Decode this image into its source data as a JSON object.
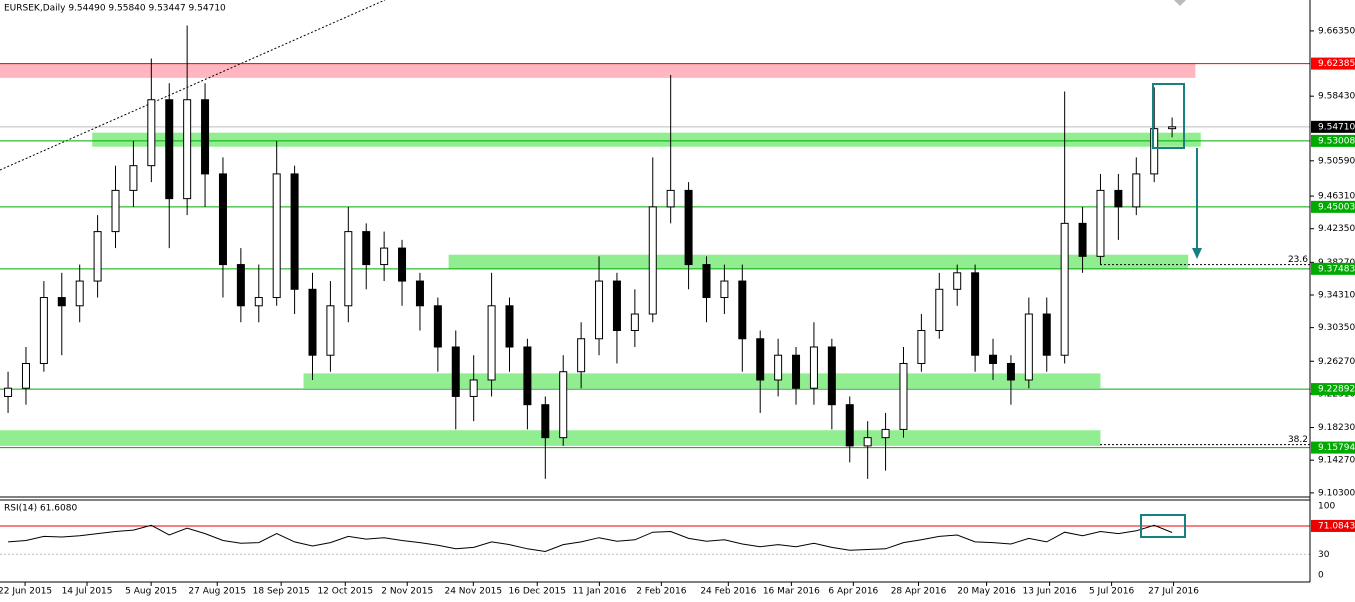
{
  "chart_data": {
    "type": "candlestick",
    "title": "EURSEK,Daily  9.54490 9.55840 9.53447 9.54710",
    "ylim": [
      9.098,
      9.701
    ],
    "yticks": [
      {
        "value": 9.6635,
        "label": "9.66350"
      },
      {
        "value": 9.5843,
        "label": "9.58430"
      },
      {
        "value": 9.5059,
        "label": "9.50590"
      },
      {
        "value": 9.4631,
        "label": "9.46310"
      },
      {
        "value": 9.4235,
        "label": "9.42350"
      },
      {
        "value": 9.3827,
        "label": "9.38270"
      },
      {
        "value": 9.3431,
        "label": "9.34310"
      },
      {
        "value": 9.3035,
        "label": "9.30350"
      },
      {
        "value": 9.2627,
        "label": "9.26270"
      },
      {
        "value": 9.2231,
        "label": "9.22310"
      },
      {
        "value": 9.1823,
        "label": "9.18230"
      },
      {
        "value": 9.1427,
        "label": "9.14270"
      },
      {
        "value": 9.103,
        "label": "9.10300"
      }
    ],
    "xlim": [
      -0.45,
      72.7
    ],
    "xticks": [
      {
        "value": 0.95,
        "label": "22 Jun 2015"
      },
      {
        "value": 4.41,
        "label": "14 Jul 2015"
      },
      {
        "value": 7.99,
        "label": "5 Aug 2015"
      },
      {
        "value": 11.68,
        "label": "27 Aug 2015"
      },
      {
        "value": 15.25,
        "label": "18 Sep 2015"
      },
      {
        "value": 18.83,
        "label": "12 Oct 2015"
      },
      {
        "value": 22.29,
        "label": "2 Nov 2015"
      },
      {
        "value": 25.98,
        "label": "24 Nov 2015"
      },
      {
        "value": 29.55,
        "label": "16 Dec 2015"
      },
      {
        "value": 33.02,
        "label": "11 Jan 2016"
      },
      {
        "value": 36.48,
        "label": "2 Feb 2016"
      },
      {
        "value": 40.22,
        "label": "24 Feb 2016"
      },
      {
        "value": 43.74,
        "label": "16 Mar 2016"
      },
      {
        "value": 47.2,
        "label": "6 Apr 2016"
      },
      {
        "value": 50.84,
        "label": "28 Apr 2016"
      },
      {
        "value": 54.64,
        "label": "20 May 2016"
      },
      {
        "value": 58.16,
        "label": "13 Jun 2016"
      },
      {
        "value": 61.62,
        "label": "5 Jul 2016"
      },
      {
        "value": 65.08,
        "label": "27 Jul 2016"
      }
    ],
    "ohlc": {
      "open": [
        9.22,
        9.23,
        9.26,
        9.34,
        9.33,
        9.36,
        9.42,
        9.47,
        9.5,
        9.58,
        9.46,
        9.58,
        9.49,
        9.38,
        9.33,
        9.34,
        9.49,
        9.35,
        9.27,
        9.33,
        9.42,
        9.38,
        9.4,
        9.36,
        9.33,
        9.28,
        9.22,
        9.24,
        9.33,
        9.28,
        9.21,
        9.17,
        9.25,
        9.29,
        9.36,
        9.3,
        9.32,
        9.45,
        9.47,
        9.38,
        9.34,
        9.36,
        9.29,
        9.24,
        9.27,
        9.23,
        9.28,
        9.21,
        9.16,
        9.17,
        9.18,
        9.26,
        9.3,
        9.35,
        9.37,
        9.27,
        9.26,
        9.24,
        9.32,
        9.27,
        9.43,
        9.39,
        9.47,
        9.45,
        9.49,
        9.5449
      ],
      "high": [
        9.25,
        9.28,
        9.36,
        9.37,
        9.38,
        9.44,
        9.5,
        9.53,
        9.63,
        9.6,
        9.67,
        9.6,
        9.51,
        9.4,
        9.38,
        9.53,
        9.5,
        9.37,
        9.36,
        9.45,
        9.43,
        9.42,
        9.41,
        9.37,
        9.34,
        9.3,
        9.27,
        9.37,
        9.34,
        9.29,
        9.22,
        9.27,
        9.31,
        9.39,
        9.37,
        9.35,
        9.51,
        9.61,
        9.48,
        9.39,
        9.38,
        9.38,
        9.3,
        9.29,
        9.28,
        9.31,
        9.29,
        9.22,
        9.19,
        9.2,
        9.28,
        9.32,
        9.37,
        9.38,
        9.38,
        9.29,
        9.27,
        9.34,
        9.34,
        9.59,
        9.45,
        9.49,
        9.49,
        9.51,
        9.595,
        9.5584
      ],
      "low": [
        9.2,
        9.21,
        9.25,
        9.27,
        9.31,
        9.34,
        9.4,
        9.45,
        9.48,
        9.4,
        9.44,
        9.45,
        9.34,
        9.31,
        9.31,
        9.33,
        9.32,
        9.24,
        9.25,
        9.31,
        9.35,
        9.36,
        9.33,
        9.3,
        9.25,
        9.18,
        9.19,
        9.22,
        9.25,
        9.18,
        9.12,
        9.16,
        9.23,
        9.27,
        9.26,
        9.28,
        9.31,
        9.43,
        9.35,
        9.31,
        9.32,
        9.25,
        9.2,
        9.22,
        9.21,
        9.21,
        9.18,
        9.14,
        9.12,
        9.13,
        9.17,
        9.25,
        9.29,
        9.33,
        9.25,
        9.24,
        9.21,
        9.23,
        9.25,
        9.26,
        9.37,
        9.38,
        9.41,
        9.44,
        9.48,
        9.53447
      ],
      "close": [
        9.23,
        9.26,
        9.34,
        9.33,
        9.36,
        9.42,
        9.47,
        9.5,
        9.58,
        9.46,
        9.58,
        9.49,
        9.38,
        9.33,
        9.34,
        9.49,
        9.35,
        9.27,
        9.33,
        9.42,
        9.38,
        9.4,
        9.36,
        9.33,
        9.28,
        9.22,
        9.24,
        9.33,
        9.28,
        9.21,
        9.17,
        9.25,
        9.29,
        9.36,
        9.3,
        9.32,
        9.45,
        9.47,
        9.38,
        9.34,
        9.36,
        9.29,
        9.24,
        9.27,
        9.23,
        9.28,
        9.21,
        9.16,
        9.17,
        9.18,
        9.26,
        9.3,
        9.35,
        9.37,
        9.27,
        9.26,
        9.24,
        9.32,
        9.27,
        9.43,
        9.39,
        9.47,
        9.45,
        9.49,
        9.5449,
        9.5471
      ]
    },
    "zones": [
      {
        "from": -0.45,
        "to": 66.3,
        "low": 9.6065,
        "high": 9.6245,
        "color": "#ffb6c1"
      },
      {
        "from": 4.7,
        "to": 66.6,
        "low": 9.523,
        "high": 9.54,
        "color": "#90ee90"
      },
      {
        "from": 24.6,
        "to": 65.9,
        "low": 9.375,
        "high": 9.392,
        "color": "#90ee90"
      },
      {
        "from": 16.5,
        "to": 61,
        "low": 9.23,
        "high": 9.248,
        "color": "#90ee90"
      },
      {
        "from": -0.45,
        "to": 61,
        "low": 9.16,
        "high": 9.179,
        "color": "#90ee90"
      }
    ],
    "levels": [
      {
        "value": 9.62385,
        "color": "#ff0000"
      },
      {
        "value": {
          "value": 9.5471,
          "label": "9.54710"
        },
        "color": "#000000"
      },
      {
        "value": 9.53008,
        "color": "#00aa00"
      },
      {
        "value": 9.45003,
        "color": "#00aa00"
      },
      {
        "value": 9.37483,
        "color": "#00aa00"
      },
      {
        "value": 9.22892,
        "color": "#00aa00"
      },
      {
        "value": 9.15794,
        "color": "#00aa00"
      }
    ],
    "fib": [
      {
        "label": "23.6",
        "value": 9.38
      },
      {
        "label": "38.2",
        "value": 9.1615
      }
    ],
    "rsi": {
      "title": "RSI(14) 61.6080",
      "ylim": [
        0,
        100
      ],
      "yticks": [
        100,
        30,
        0
      ],
      "level": 71.0843,
      "values": [
        48,
        50,
        56,
        55,
        57,
        60,
        63,
        65,
        72,
        58,
        68,
        60,
        50,
        46,
        47,
        60,
        48,
        42,
        47,
        56,
        52,
        54,
        50,
        47,
        43,
        38,
        40,
        48,
        44,
        38,
        34,
        44,
        48,
        54,
        49,
        51,
        62,
        63,
        53,
        49,
        51,
        45,
        41,
        44,
        41,
        46,
        40,
        36,
        37,
        38,
        47,
        51,
        56,
        58,
        48,
        47,
        45,
        53,
        48,
        62,
        57,
        63,
        60,
        64,
        72,
        61.608
      ]
    }
  }
}
